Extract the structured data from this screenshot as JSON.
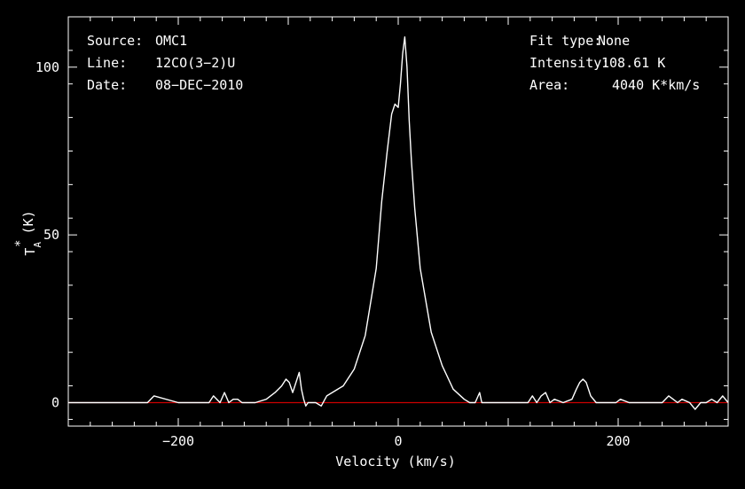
{
  "chart_data": {
    "type": "line",
    "title": "",
    "xlabel": "Velocity (km/s)",
    "ylabel": {
      "main": "T",
      "sub": "A",
      "sup": "*",
      "unit": "(K)"
    },
    "xlim": [
      -300,
      300
    ],
    "ylim": [
      -7,
      115
    ],
    "x_ticks": [
      {
        "value": -200,
        "label": "−200"
      },
      {
        "value": 0,
        "label": "0"
      },
      {
        "value": 200,
        "label": "200"
      }
    ],
    "y_ticks": [
      {
        "value": 0,
        "label": "0"
      },
      {
        "value": 50,
        "label": "50"
      },
      {
        "value": 100,
        "label": "100"
      }
    ],
    "info_left": [
      {
        "key": "Source:",
        "value": "OMC1"
      },
      {
        "key": "Line:",
        "value": "12CO(3−2)U"
      },
      {
        "key": "Date:",
        "value": "08−DEC−2010"
      }
    ],
    "info_right": [
      {
        "key": "Fit type:",
        "value": "None"
      },
      {
        "key": "Intensity:",
        "value": "108.61 K"
      },
      {
        "key": "Area:",
        "value": "4040 K*km/s"
      }
    ],
    "colors": {
      "background": "#000000",
      "spectrum": "#ffffff",
      "baseline": "#cc0000",
      "axes": "#ffffff"
    },
    "baseline_value": 0,
    "series": [
      {
        "x": [
          -300,
          -270,
          -240,
          -228,
          -222,
          -200,
          -180,
          -172,
          -168,
          -162,
          -158,
          -154,
          -150,
          -146,
          -142,
          -130,
          -120,
          -112,
          -106,
          -102,
          -99,
          -96,
          -93,
          -90,
          -88,
          -86,
          -84,
          -82,
          -80,
          -75,
          -70,
          -65,
          -60,
          -50,
          -40,
          -30,
          -20,
          -15,
          -10,
          -6,
          -3,
          0,
          2,
          4,
          6,
          8,
          10,
          12,
          15,
          20,
          30,
          40,
          50,
          60,
          65,
          70,
          74,
          76,
          78,
          80,
          90,
          100,
          110,
          118,
          122,
          126,
          130,
          134,
          138,
          142,
          150,
          158,
          162,
          165,
          168,
          171,
          175,
          180,
          190,
          198,
          202,
          210,
          220,
          230,
          240,
          246,
          250,
          254,
          258,
          265,
          270,
          275,
          280,
          285,
          290,
          295,
          300
        ],
        "y": [
          0,
          0,
          0,
          0,
          2,
          0,
          0,
          0,
          2,
          0,
          3,
          0,
          1,
          1,
          0,
          0,
          1,
          3,
          5,
          7,
          6,
          3,
          6,
          9,
          4,
          1,
          -1,
          0,
          0,
          0,
          -1,
          2,
          3,
          5,
          10,
          20,
          40,
          60,
          75,
          86,
          89,
          88,
          95,
          104,
          109,
          100,
          84,
          72,
          58,
          40,
          21,
          11,
          4,
          1,
          0,
          0,
          3,
          0,
          0,
          0,
          0,
          0,
          0,
          0,
          2,
          0,
          2,
          3,
          0,
          1,
          0,
          1,
          4,
          6,
          7,
          6,
          2,
          0,
          0,
          0,
          1,
          0,
          0,
          0,
          0,
          2,
          1,
          0,
          1,
          0,
          -2,
          0,
          0,
          1,
          0,
          2,
          0
        ]
      }
    ]
  }
}
